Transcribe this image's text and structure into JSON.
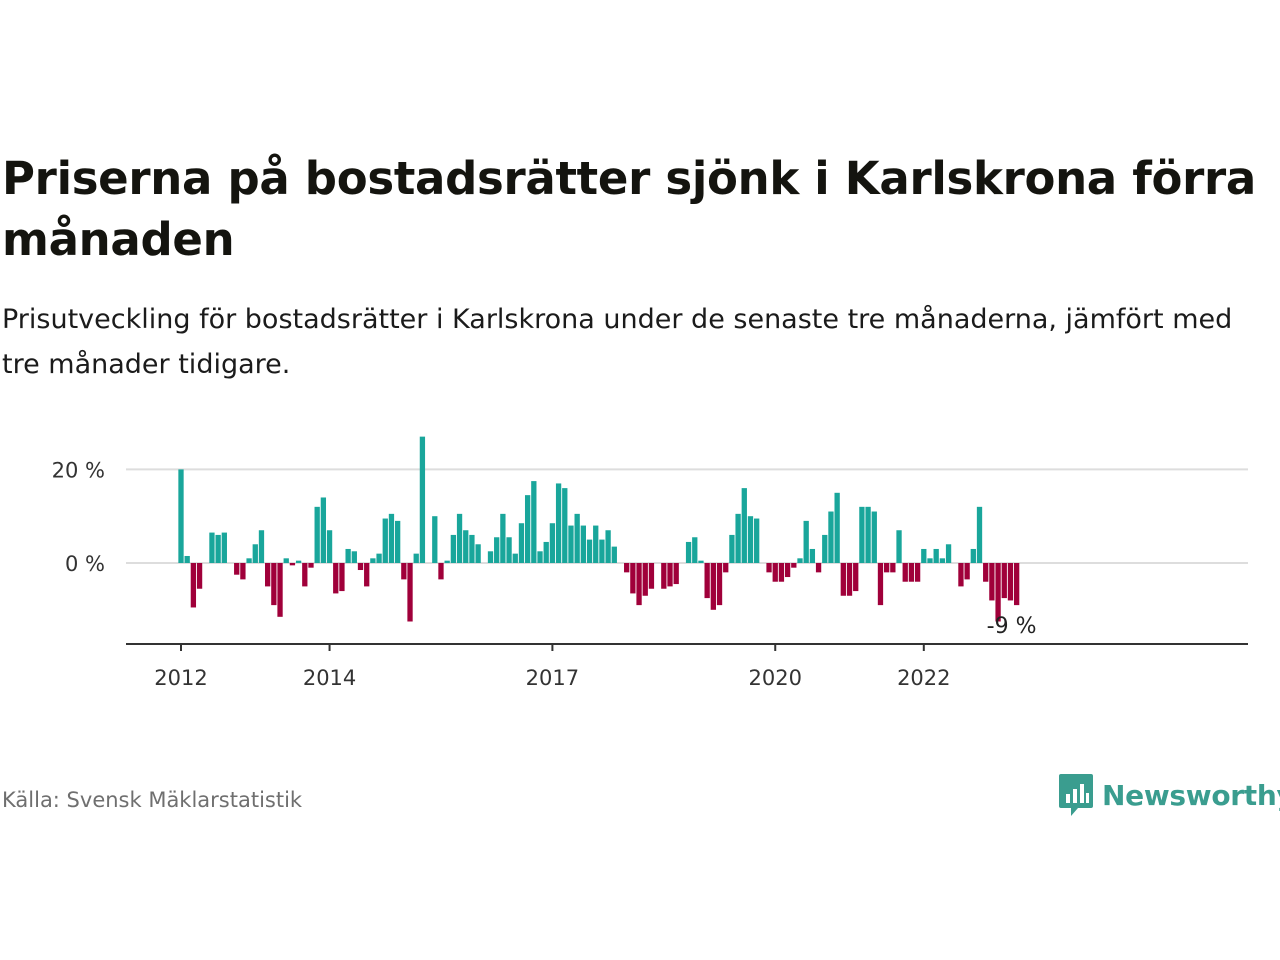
{
  "title": "Priserna på bostadsrätter sjönk i Karlskrona förra månaden",
  "subtitle": "Prisutveckling för bostadsrätter i Karlskrona under de senaste tre månaderna, jämfört med tre månader tidigare.",
  "source": "Källa: Svensk Mäklarstatistik",
  "brand": "Newsworthy",
  "colors": {
    "positive": "#19a69b",
    "negative": "#a0003a",
    "grid": "#dddddd",
    "axis": "#333333",
    "brand": "#3a9d8f"
  },
  "chart_data": {
    "type": "bar",
    "xlabel": "",
    "ylabel": "",
    "ylim": [
      -17,
      28
    ],
    "y_ticks": [
      0,
      20
    ],
    "y_tick_labels": [
      "0 %",
      "20 %"
    ],
    "x_ticks": [
      "2012-01",
      "2014-01",
      "2017-01",
      "2020-01",
      "2022-01"
    ],
    "x_tick_labels": [
      "2012",
      "2014",
      "2017",
      "2020",
      "2022"
    ],
    "start_month": "2012-01",
    "end_label": "-9 %",
    "values": [
      20,
      1.5,
      -9.5,
      -5.5,
      0,
      6.5,
      6,
      6.5,
      0,
      -2.5,
      -3.5,
      1,
      4,
      7,
      -5,
      -9,
      -11.5,
      1,
      -0.5,
      0.5,
      -5,
      -1,
      12,
      14,
      7,
      -6.5,
      -6,
      3,
      2.5,
      -1.5,
      -5,
      1,
      2,
      9.5,
      10.5,
      9,
      -3.5,
      -12.5,
      2,
      27,
      0,
      10,
      -3.5,
      0.5,
      6,
      10.5,
      7,
      6,
      4,
      0,
      2.5,
      5.5,
      10.5,
      5.5,
      2,
      8.5,
      14.5,
      17.5,
      2.5,
      4.5,
      8.5,
      17,
      16,
      8,
      10.5,
      8,
      5,
      8,
      5,
      7,
      3.5,
      0,
      -2,
      -6.5,
      -9,
      -7,
      -5.5,
      0,
      -5.5,
      -5,
      -4.5,
      0,
      4.5,
      5.5,
      0.5,
      -7.5,
      -10,
      -9,
      -2,
      6,
      10.5,
      16,
      10,
      9.5,
      0,
      -2,
      -4,
      -4,
      -3,
      -1,
      1,
      9,
      3,
      -2,
      6,
      11,
      15,
      -7,
      -7,
      -6,
      12,
      12,
      11,
      -9,
      -2,
      -2,
      7,
      -4,
      -4,
      -4,
      3,
      1,
      3,
      1,
      4,
      0,
      -5,
      -3.5,
      3,
      12,
      -4,
      -8,
      -12.5,
      -7.5,
      -8,
      -9
    ]
  }
}
